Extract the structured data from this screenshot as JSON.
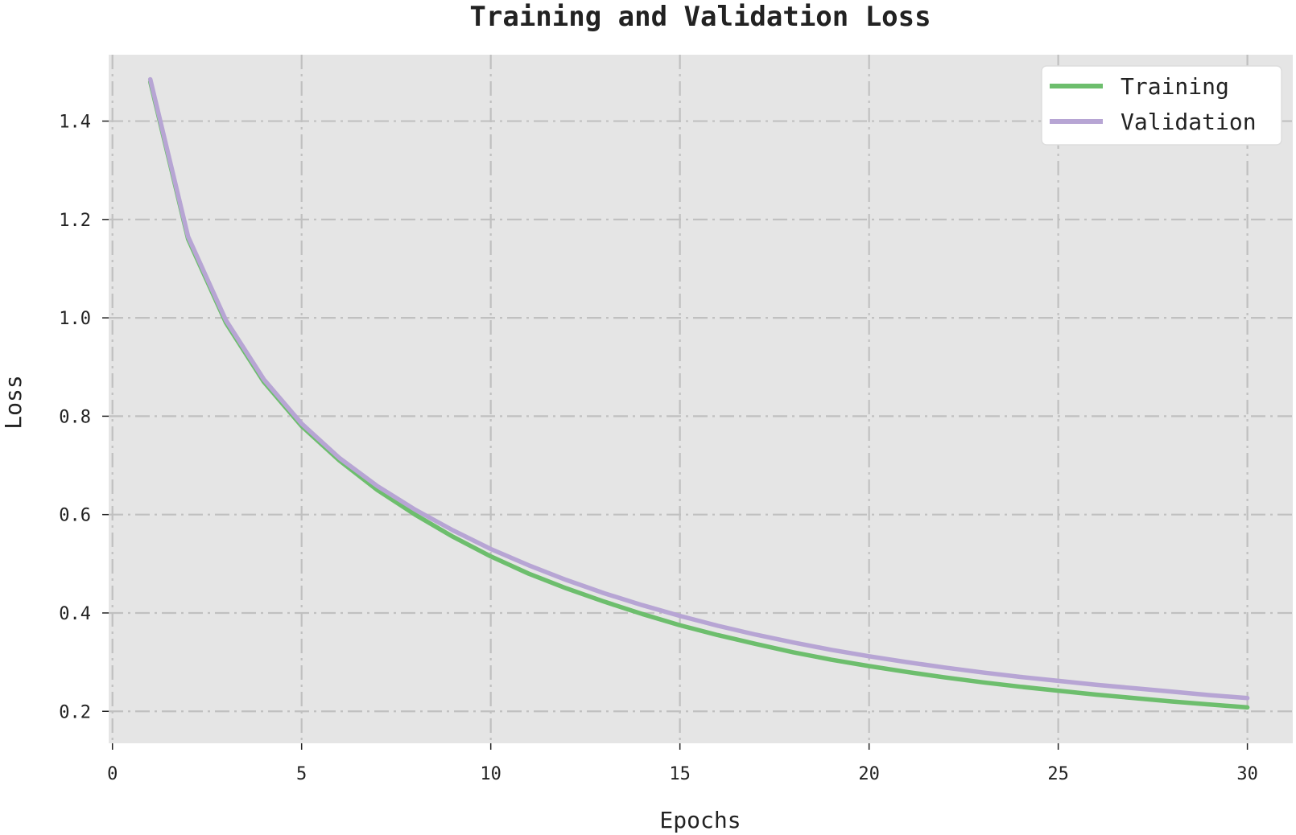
{
  "chart_data": {
    "type": "line",
    "title": "Training and Validation Loss",
    "xlabel": "Epochs",
    "ylabel": "Loss",
    "xlim": [
      -0.1,
      31.2
    ],
    "ylim": [
      0.135,
      1.535
    ],
    "xticks": [
      0,
      5,
      10,
      15,
      20,
      25,
      30
    ],
    "xtick_labels": [
      "0",
      "5",
      "10",
      "15",
      "20",
      "25",
      "30"
    ],
    "yticks": [
      0.2,
      0.4,
      0.6,
      0.8,
      1.0,
      1.2,
      1.4
    ],
    "ytick_labels": [
      "0.2",
      "0.4",
      "0.6",
      "0.8",
      "1.0",
      "1.2",
      "1.4"
    ],
    "grid": true,
    "legend_position": "top-right",
    "x": [
      1,
      2,
      3,
      4,
      5,
      6,
      7,
      8,
      9,
      10,
      11,
      12,
      13,
      14,
      15,
      16,
      17,
      18,
      19,
      20,
      21,
      22,
      23,
      24,
      25,
      26,
      27,
      28,
      29,
      30
    ],
    "series": [
      {
        "name": "Training",
        "color": "#6dbe6d",
        "values": [
          1.48,
          1.16,
          0.99,
          0.87,
          0.78,
          0.71,
          0.65,
          0.6,
          0.555,
          0.515,
          0.48,
          0.45,
          0.423,
          0.398,
          0.375,
          0.355,
          0.337,
          0.32,
          0.305,
          0.292,
          0.28,
          0.269,
          0.259,
          0.25,
          0.242,
          0.234,
          0.227,
          0.22,
          0.214,
          0.208
        ]
      },
      {
        "name": "Validation",
        "color": "#b7a5d4",
        "values": [
          1.485,
          1.165,
          0.995,
          0.875,
          0.785,
          0.715,
          0.658,
          0.61,
          0.568,
          0.53,
          0.497,
          0.467,
          0.44,
          0.416,
          0.394,
          0.374,
          0.356,
          0.34,
          0.325,
          0.312,
          0.3,
          0.289,
          0.279,
          0.27,
          0.262,
          0.254,
          0.247,
          0.24,
          0.233,
          0.227
        ]
      }
    ]
  }
}
